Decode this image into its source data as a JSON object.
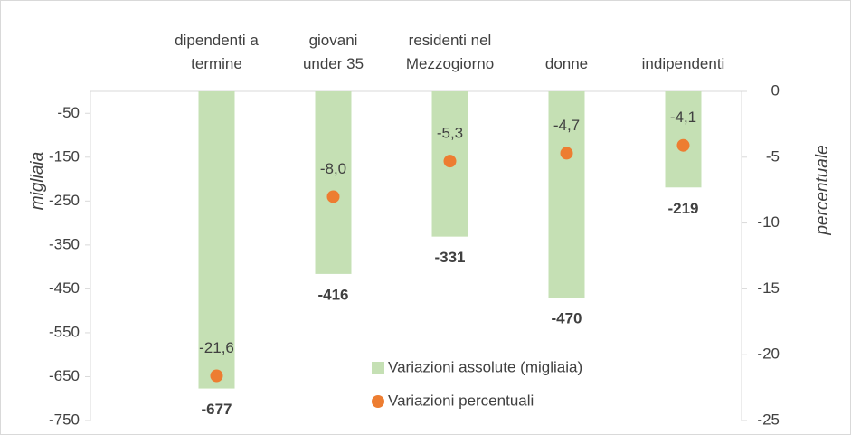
{
  "chart_data": {
    "type": "bar",
    "categories": [
      "dipendenti a\ntermine",
      "giovani\nunder 35",
      "residenti nel\nMezzogiorno",
      "donne",
      "indipendenti"
    ],
    "series": [
      {
        "name": "Variazioni assolute (migliaia)",
        "type": "bar",
        "color": "#c5e0b4",
        "values": [
          -677,
          -416,
          -331,
          -470,
          -219
        ]
      },
      {
        "name": "Variazioni percentuali",
        "type": "scatter",
        "axis": "y2",
        "color": "#ed7d31",
        "values": [
          -21.6,
          -8,
          -5.3,
          -4.7,
          -4.1
        ],
        "value_labels": [
          "-21,6",
          "-8,0",
          "-5,3",
          "-4,7",
          "-4,1"
        ]
      }
    ],
    "y_label": "migliaia",
    "y2_label": "percentuale",
    "ylim": [
      -750,
      0
    ],
    "yticks": [
      -50,
      -150,
      -250,
      -350,
      -450,
      -550,
      -650,
      -750
    ],
    "y2lim": [
      -25,
      0
    ],
    "y2ticks": [
      0,
      -5,
      -10,
      -15,
      -20,
      -25
    ]
  }
}
